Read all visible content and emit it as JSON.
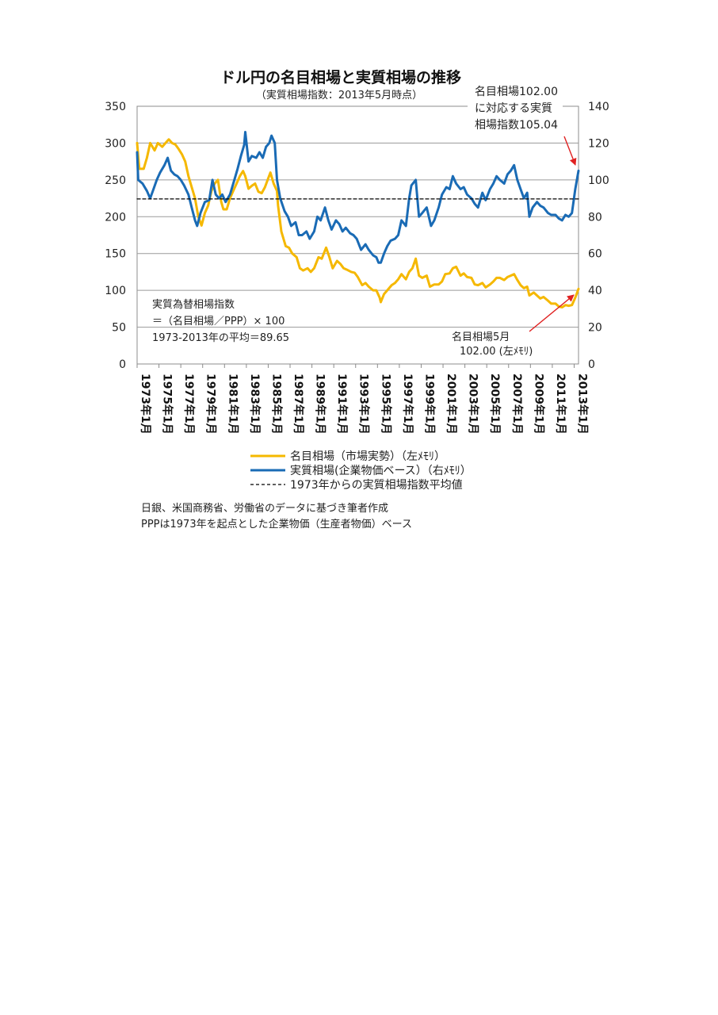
{
  "chart_data": {
    "type": "line",
    "title": "ドル円の名目相場と実質相場の推移",
    "subtitle": "（実質相場指数：2013年5月時点）",
    "x_tick_labels": [
      "1973年1月",
      "1975年1月",
      "1977年1月",
      "1979年1月",
      "1981年1月",
      "1983年1月",
      "1985年1月",
      "1987年1月",
      "1989年1月",
      "1991年1月",
      "1993年1月",
      "1995年1月",
      "1997年1月",
      "1999年1月",
      "2001年1月",
      "2003年1月",
      "2005年1月",
      "2007年1月",
      "2009年1月",
      "2011年1月",
      "2013年1月"
    ],
    "x_range": [
      1973.0,
      2013.4
    ],
    "y_left_ticks": [
      "0",
      "50",
      "100",
      "150",
      "200",
      "250",
      "300",
      "350"
    ],
    "y_left_range": [
      0,
      350
    ],
    "y_right_ticks": [
      "0",
      "20",
      "40",
      "60",
      "80",
      "100",
      "120",
      "140"
    ],
    "y_right_range": [
      0,
      140
    ],
    "grid": true,
    "legend_position": "bottom",
    "series": [
      {
        "name": "名目相場（市場実勢）（左ﾒﾓﾘ）",
        "axis": "left",
        "color": "#F5B800",
        "style": "solid",
        "points": [
          [
            1973.0,
            300
          ],
          [
            1973.2,
            265
          ],
          [
            1973.6,
            265
          ],
          [
            1973.9,
            280
          ],
          [
            1974.2,
            300
          ],
          [
            1974.6,
            290
          ],
          [
            1974.9,
            300
          ],
          [
            1975.3,
            295
          ],
          [
            1975.6,
            300
          ],
          [
            1975.9,
            305
          ],
          [
            1976.2,
            300
          ],
          [
            1976.5,
            298
          ],
          [
            1976.8,
            292
          ],
          [
            1977.1,
            285
          ],
          [
            1977.4,
            275
          ],
          [
            1977.7,
            255
          ],
          [
            1978.0,
            240
          ],
          [
            1978.3,
            225
          ],
          [
            1978.6,
            200
          ],
          [
            1978.9,
            188
          ],
          [
            1979.2,
            205
          ],
          [
            1979.5,
            215
          ],
          [
            1979.8,
            235
          ],
          [
            1980.1,
            245
          ],
          [
            1980.4,
            250
          ],
          [
            1980.7,
            220
          ],
          [
            1980.9,
            210
          ],
          [
            1981.2,
            210
          ],
          [
            1981.5,
            225
          ],
          [
            1981.8,
            235
          ],
          [
            1982.1,
            245
          ],
          [
            1982.4,
            255
          ],
          [
            1982.7,
            262
          ],
          [
            1982.9,
            255
          ],
          [
            1983.2,
            238
          ],
          [
            1983.5,
            242
          ],
          [
            1983.8,
            245
          ],
          [
            1984.1,
            234
          ],
          [
            1984.4,
            232
          ],
          [
            1984.7,
            240
          ],
          [
            1985.0,
            252
          ],
          [
            1985.2,
            260
          ],
          [
            1985.5,
            245
          ],
          [
            1985.8,
            235
          ],
          [
            1985.9,
            215
          ],
          [
            1986.2,
            180
          ],
          [
            1986.6,
            160
          ],
          [
            1986.9,
            158
          ],
          [
            1987.2,
            150
          ],
          [
            1987.6,
            145
          ],
          [
            1987.9,
            130
          ],
          [
            1988.2,
            127
          ],
          [
            1988.6,
            130
          ],
          [
            1988.9,
            125
          ],
          [
            1989.2,
            130
          ],
          [
            1989.6,
            145
          ],
          [
            1989.9,
            143
          ],
          [
            1990.3,
            158
          ],
          [
            1990.6,
            145
          ],
          [
            1990.9,
            130
          ],
          [
            1991.3,
            140
          ],
          [
            1991.6,
            136
          ],
          [
            1991.9,
            130
          ],
          [
            1992.2,
            128
          ],
          [
            1992.6,
            125
          ],
          [
            1992.9,
            124
          ],
          [
            1993.2,
            118
          ],
          [
            1993.6,
            107
          ],
          [
            1993.9,
            110
          ],
          [
            1994.2,
            105
          ],
          [
            1994.6,
            100
          ],
          [
            1994.9,
            100
          ],
          [
            1995.2,
            90
          ],
          [
            1995.3,
            84
          ],
          [
            1995.6,
            95
          ],
          [
            1995.9,
            100
          ],
          [
            1996.3,
            107
          ],
          [
            1996.6,
            110
          ],
          [
            1996.9,
            115
          ],
          [
            1997.2,
            122
          ],
          [
            1997.6,
            115
          ],
          [
            1997.9,
            125
          ],
          [
            1998.2,
            130
          ],
          [
            1998.5,
            143
          ],
          [
            1998.8,
            120
          ],
          [
            1999.1,
            117
          ],
          [
            1999.5,
            120
          ],
          [
            1999.8,
            105
          ],
          [
            2000.2,
            108
          ],
          [
            2000.6,
            108
          ],
          [
            2000.9,
            112
          ],
          [
            2001.2,
            122
          ],
          [
            2001.6,
            123
          ],
          [
            2001.9,
            130
          ],
          [
            2002.2,
            132
          ],
          [
            2002.6,
            120
          ],
          [
            2002.9,
            123
          ],
          [
            2003.2,
            118
          ],
          [
            2003.6,
            117
          ],
          [
            2003.9,
            108
          ],
          [
            2004.2,
            107
          ],
          [
            2004.6,
            110
          ],
          [
            2004.9,
            104
          ],
          [
            2005.3,
            108
          ],
          [
            2005.6,
            112
          ],
          [
            2005.9,
            117
          ],
          [
            2006.2,
            117
          ],
          [
            2006.6,
            114
          ],
          [
            2006.9,
            118
          ],
          [
            2007.2,
            120
          ],
          [
            2007.5,
            122
          ],
          [
            2007.8,
            114
          ],
          [
            2008.1,
            107
          ],
          [
            2008.4,
            103
          ],
          [
            2008.7,
            105
          ],
          [
            2008.9,
            93
          ],
          [
            2009.3,
            97
          ],
          [
            2009.6,
            93
          ],
          [
            2009.9,
            89
          ],
          [
            2010.2,
            91
          ],
          [
            2010.6,
            86
          ],
          [
            2010.9,
            82
          ],
          [
            2011.3,
            82
          ],
          [
            2011.6,
            78
          ],
          [
            2011.9,
            77
          ],
          [
            2012.2,
            80
          ],
          [
            2012.5,
            79
          ],
          [
            2012.8,
            80
          ],
          [
            2013.1,
            90
          ],
          [
            2013.4,
            102
          ]
        ]
      },
      {
        "name": "実質相場(企業物価ベース）（右ﾒﾓﾘ）",
        "axis": "right",
        "color": "#1A6BB5",
        "style": "solid",
        "points": [
          [
            1973.0,
            115
          ],
          [
            1973.1,
            100
          ],
          [
            1973.5,
            98
          ],
          [
            1973.9,
            94
          ],
          [
            1974.2,
            90
          ],
          [
            1974.5,
            95
          ],
          [
            1974.8,
            100
          ],
          [
            1975.1,
            104
          ],
          [
            1975.5,
            108
          ],
          [
            1975.8,
            112
          ],
          [
            1976.1,
            105
          ],
          [
            1976.4,
            103
          ],
          [
            1976.7,
            102
          ],
          [
            1977.0,
            100
          ],
          [
            1977.3,
            97
          ],
          [
            1977.7,
            92
          ],
          [
            1978.0,
            85
          ],
          [
            1978.3,
            78
          ],
          [
            1978.5,
            75
          ],
          [
            1978.8,
            82
          ],
          [
            1979.2,
            88
          ],
          [
            1979.6,
            89
          ],
          [
            1979.9,
            100
          ],
          [
            1980.2,
            92
          ],
          [
            1980.5,
            90
          ],
          [
            1980.8,
            92
          ],
          [
            1981.1,
            88
          ],
          [
            1981.5,
            92
          ],
          [
            1981.9,
            100
          ],
          [
            1982.2,
            106
          ],
          [
            1982.5,
            113
          ],
          [
            1982.8,
            119
          ],
          [
            1982.9,
            126
          ],
          [
            1983.2,
            110
          ],
          [
            1983.5,
            113
          ],
          [
            1983.9,
            112
          ],
          [
            1984.2,
            115
          ],
          [
            1984.5,
            112
          ],
          [
            1984.8,
            118
          ],
          [
            1985.1,
            120
          ],
          [
            1985.3,
            124
          ],
          [
            1985.6,
            120
          ],
          [
            1985.8,
            100
          ],
          [
            1986.1,
            90
          ],
          [
            1986.5,
            83
          ],
          [
            1986.8,
            80
          ],
          [
            1987.1,
            75
          ],
          [
            1987.5,
            77
          ],
          [
            1987.8,
            70
          ],
          [
            1988.1,
            70
          ],
          [
            1988.5,
            72
          ],
          [
            1988.8,
            68
          ],
          [
            1989.2,
            72
          ],
          [
            1989.5,
            80
          ],
          [
            1989.8,
            78
          ],
          [
            1990.2,
            85
          ],
          [
            1990.5,
            78
          ],
          [
            1990.8,
            73
          ],
          [
            1991.2,
            78
          ],
          [
            1991.5,
            76
          ],
          [
            1991.8,
            72
          ],
          [
            1992.1,
            74
          ],
          [
            1992.5,
            71
          ],
          [
            1992.8,
            70
          ],
          [
            1993.1,
            68
          ],
          [
            1993.5,
            62
          ],
          [
            1993.9,
            65
          ],
          [
            1994.2,
            62
          ],
          [
            1994.6,
            59
          ],
          [
            1994.9,
            58
          ],
          [
            1995.1,
            55
          ],
          [
            1995.3,
            55
          ],
          [
            1995.6,
            60
          ],
          [
            1995.9,
            64
          ],
          [
            1996.2,
            67
          ],
          [
            1996.6,
            68
          ],
          [
            1996.9,
            70
          ],
          [
            1997.2,
            78
          ],
          [
            1997.6,
            75
          ],
          [
            1997.9,
            90
          ],
          [
            1998.1,
            97
          ],
          [
            1998.5,
            100
          ],
          [
            1998.8,
            80
          ],
          [
            1999.1,
            82
          ],
          [
            1999.5,
            85
          ],
          [
            1999.9,
            75
          ],
          [
            2000.2,
            78
          ],
          [
            2000.6,
            85
          ],
          [
            2000.9,
            92
          ],
          [
            2001.3,
            96
          ],
          [
            2001.6,
            95
          ],
          [
            2001.9,
            102
          ],
          [
            2002.2,
            98
          ],
          [
            2002.6,
            95
          ],
          [
            2002.9,
            96
          ],
          [
            2003.2,
            92
          ],
          [
            2003.6,
            90
          ],
          [
            2003.9,
            87
          ],
          [
            2004.2,
            85
          ],
          [
            2004.6,
            93
          ],
          [
            2004.9,
            89
          ],
          [
            2005.3,
            95
          ],
          [
            2005.6,
            98
          ],
          [
            2005.9,
            102
          ],
          [
            2006.2,
            100
          ],
          [
            2006.6,
            98
          ],
          [
            2006.9,
            103
          ],
          [
            2007.2,
            105
          ],
          [
            2007.5,
            108
          ],
          [
            2007.8,
            100
          ],
          [
            2008.1,
            95
          ],
          [
            2008.4,
            90
          ],
          [
            2008.7,
            93
          ],
          [
            2008.9,
            80
          ],
          [
            2009.2,
            85
          ],
          [
            2009.6,
            88
          ],
          [
            2009.9,
            86
          ],
          [
            2010.2,
            85
          ],
          [
            2010.6,
            82
          ],
          [
            2010.9,
            81
          ],
          [
            2011.3,
            81
          ],
          [
            2011.6,
            79
          ],
          [
            2011.9,
            78
          ],
          [
            2012.2,
            81
          ],
          [
            2012.5,
            80
          ],
          [
            2012.8,
            82
          ],
          [
            2013.1,
            95
          ],
          [
            2013.4,
            105
          ]
        ]
      },
      {
        "name": "1973年からの実質相場指数平均値",
        "axis": "right",
        "color": "#000000",
        "style": "dashed",
        "points": [
          [
            1973.0,
            89.65
          ],
          [
            2013.4,
            89.65
          ]
        ]
      }
    ],
    "annotations": {
      "formula_lines": [
        "実質為替相場指数",
        "＝（名目相場／PPP）× 100",
        "1973-2013年の平均＝89.65"
      ],
      "top_right_lines": [
        "名目相場102.00",
        "に対応する実質",
        "相場指数105.04"
      ],
      "bottom_right_lines": [
        "名目相場5月",
        "102.00 (左ﾒﾓﾘ)"
      ]
    }
  },
  "notes": {
    "source": "日銀、米国商務省、労働省のデータに基づき筆者作成",
    "ppp_note": "PPPは1973年を起点とした企業物価（生産者物価）ベース"
  }
}
